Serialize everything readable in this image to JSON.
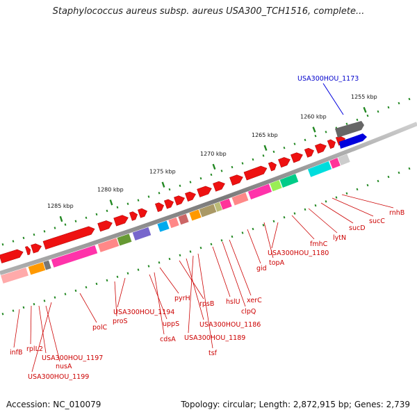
{
  "title": "Staphylococcus aureus subsp. aureus USA300_TCH1516, complete...",
  "scale_labels": [
    "1285 kbp",
    "1280 kbp",
    "1275 kbp",
    "1270 kbp",
    "1265 kbp",
    "1260 kbp",
    "1255 kbp"
  ],
  "highlighted_gene": "USA300HOU_1173",
  "gene_labels": [
    "infB",
    "rplL2",
    "USA300HOU_1197",
    "nusA",
    "USA300HOU_1199",
    "polC",
    "proS",
    "USA300HOU_1194",
    "uppS",
    "cdsA",
    "pyrH",
    "rpsB",
    "USA300HOU_1186",
    "USA300HOU_1189",
    "tsf",
    "hslU",
    "clpQ",
    "xerC",
    "gid",
    "topA",
    "USA300HOU_1180",
    "fmhC",
    "lytN",
    "sucD",
    "sucC",
    "rnhB"
  ],
  "footer": {
    "accession": "Accession: NC_010079",
    "stats": "Topology: circular; Length: 2,872,915 bp; Genes: 2,739"
  },
  "colors": {
    "gene_arrow": "#ee1111",
    "highlight_gene": "#0000dd",
    "highlight_label": "#0000cc",
    "label": "#cc0000",
    "backbone": "#888888",
    "ticks": "#228822"
  }
}
